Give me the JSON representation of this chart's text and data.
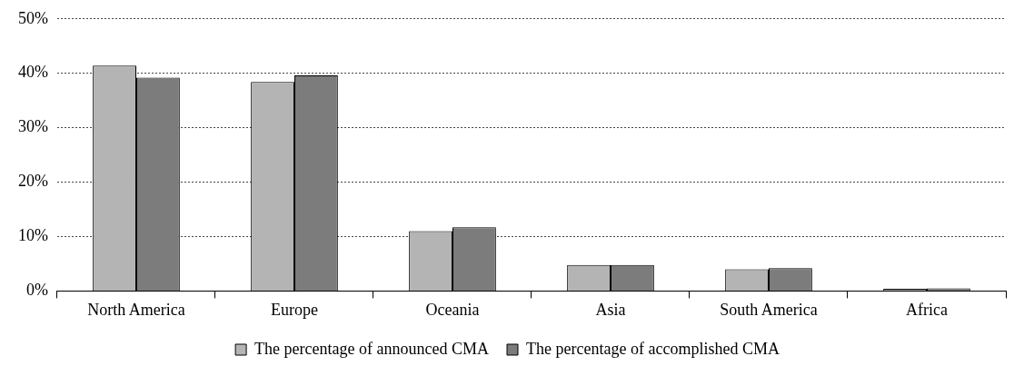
{
  "chart_data": {
    "type": "bar",
    "categories": [
      "North America",
      "Europe",
      "Oceania",
      "Asia",
      "South America",
      "Africa"
    ],
    "series": [
      {
        "name": "The percentage of announced CMA",
        "color": "#b4b4b4",
        "values": [
          41.4,
          38.4,
          11.0,
          4.8,
          4.0,
          0.4
        ]
      },
      {
        "name": "The percentage of accomplished CMA",
        "color": "#7c7c7c",
        "values": [
          39.2,
          39.6,
          11.7,
          4.8,
          4.2,
          0.5
        ]
      }
    ],
    "ylim": [
      0,
      50
    ],
    "yticks": [
      {
        "value": 0,
        "label": "0%"
      },
      {
        "value": 10,
        "label": "10%"
      },
      {
        "value": 20,
        "label": "20%"
      },
      {
        "value": 30,
        "label": "30%"
      },
      {
        "value": 40,
        "label": "40%"
      },
      {
        "value": 50,
        "label": "50%"
      }
    ],
    "grid": "y",
    "legend": "bottom"
  }
}
